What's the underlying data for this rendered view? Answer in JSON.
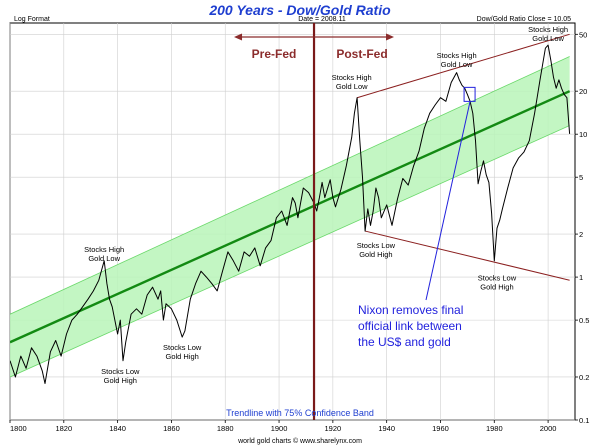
{
  "chart_data": {
    "type": "line",
    "title": "200 Years - Dow/Gold Ratio",
    "header_left": "Log Format",
    "header_center": "Date = 2008.11",
    "header_right": "Dow/Gold Ratio Close = 10.05",
    "footer": "world gold charts © www.sharelynx.com",
    "band_label": "Trendline with 75% Confidence Band",
    "xlim": [
      1800,
      2010
    ],
    "ylim": [
      0.1,
      60
    ],
    "yscale": "log",
    "x_ticks": [
      1800,
      1820,
      1840,
      1860,
      1880,
      1900,
      1920,
      1940,
      1960,
      1980,
      2000
    ],
    "y_ticks": [
      0.1,
      0.2,
      0.5,
      1,
      2,
      5,
      10,
      20,
      50
    ],
    "grid": true,
    "fed_year": 1913,
    "fed_labels": {
      "pre": "Pre-Fed",
      "post": "Post-Fed"
    },
    "trendline": {
      "start": [
        1800,
        0.35
      ],
      "end": [
        2008,
        20
      ]
    },
    "band": {
      "upper": [
        [
          1800,
          0.55
        ],
        [
          2008,
          35
        ]
      ],
      "lower": [
        [
          1800,
          0.2
        ],
        [
          2008,
          11.5
        ]
      ]
    },
    "channel_upper": [
      [
        1929,
        18
      ],
      [
        2008,
        50
      ]
    ],
    "channel_lower": [
      [
        1932,
        2.1
      ],
      [
        2008,
        0.95
      ]
    ],
    "nixon_box": {
      "year": 1971,
      "value": 19
    },
    "nixon_note": [
      "Nixon removes final",
      "official link between",
      "the US$ and gold"
    ],
    "annotations": [
      {
        "lines": [
          "Stocks High",
          "Gold Low"
        ],
        "x": 1835,
        "y": 1.5
      },
      {
        "lines": [
          "Stocks Low",
          "Gold High"
        ],
        "x": 1841,
        "y": 0.21
      },
      {
        "lines": [
          "Stocks Low",
          "Gold High"
        ],
        "x": 1864,
        "y": 0.31
      },
      {
        "lines": [
          "Stocks High",
          "Gold Low"
        ],
        "x": 1927,
        "y": 24
      },
      {
        "lines": [
          "Stocks Low",
          "Gold High"
        ],
        "x": 1936,
        "y": 1.6
      },
      {
        "lines": [
          "Stocks High",
          "Gold Low"
        ],
        "x": 1966,
        "y": 34
      },
      {
        "lines": [
          "Stocks Low",
          "Gold High"
        ],
        "x": 1981,
        "y": 0.95
      },
      {
        "lines": [
          "Stocks High",
          "Gold Low"
        ],
        "x": 2000,
        "y": 52
      }
    ],
    "series": [
      {
        "points": [
          [
            1800,
            0.26
          ],
          [
            1802,
            0.2
          ],
          [
            1804,
            0.28
          ],
          [
            1806,
            0.23
          ],
          [
            1808,
            0.32
          ],
          [
            1810,
            0.28
          ],
          [
            1812,
            0.22
          ],
          [
            1813,
            0.18
          ],
          [
            1815,
            0.3
          ],
          [
            1817,
            0.36
          ],
          [
            1819,
            0.28
          ],
          [
            1821,
            0.4
          ],
          [
            1823,
            0.5
          ],
          [
            1825,
            0.55
          ],
          [
            1827,
            0.62
          ],
          [
            1829,
            0.7
          ],
          [
            1831,
            0.8
          ],
          [
            1833,
            0.95
          ],
          [
            1835,
            1.3
          ],
          [
            1836,
            0.9
          ],
          [
            1837,
            0.7
          ],
          [
            1838,
            0.62
          ],
          [
            1840,
            0.4
          ],
          [
            1841,
            0.5
          ],
          [
            1842,
            0.26
          ],
          [
            1843,
            0.35
          ],
          [
            1845,
            0.55
          ],
          [
            1847,
            0.6
          ],
          [
            1849,
            0.55
          ],
          [
            1851,
            0.75
          ],
          [
            1853,
            0.85
          ],
          [
            1855,
            0.7
          ],
          [
            1856,
            0.8
          ],
          [
            1857,
            0.5
          ],
          [
            1858,
            0.65
          ],
          [
            1860,
            0.6
          ],
          [
            1862,
            0.5
          ],
          [
            1864,
            0.38
          ],
          [
            1865,
            0.42
          ],
          [
            1867,
            0.7
          ],
          [
            1869,
            0.9
          ],
          [
            1871,
            1.1
          ],
          [
            1873,
            1.0
          ],
          [
            1875,
            0.9
          ],
          [
            1877,
            0.8
          ],
          [
            1879,
            1.1
          ],
          [
            1881,
            1.5
          ],
          [
            1883,
            1.3
          ],
          [
            1885,
            1.1
          ],
          [
            1887,
            1.5
          ],
          [
            1889,
            1.4
          ],
          [
            1891,
            1.6
          ],
          [
            1893,
            1.2
          ],
          [
            1895,
            1.6
          ],
          [
            1897,
            1.8
          ],
          [
            1899,
            2.6
          ],
          [
            1901,
            2.9
          ],
          [
            1903,
            2.3
          ],
          [
            1905,
            3.6
          ],
          [
            1906,
            3.3
          ],
          [
            1907,
            2.6
          ],
          [
            1909,
            4.2
          ],
          [
            1911,
            3.9
          ],
          [
            1913,
            3.3
          ],
          [
            1914,
            2.9
          ],
          [
            1915,
            3.6
          ],
          [
            1916,
            4.6
          ],
          [
            1917,
            3.6
          ],
          [
            1919,
            4.8
          ],
          [
            1920,
            3.6
          ],
          [
            1921,
            3.1
          ],
          [
            1923,
            4.1
          ],
          [
            1925,
            6.0
          ],
          [
            1927,
            9.5
          ],
          [
            1928,
            14.0
          ],
          [
            1929,
            18.0
          ],
          [
            1930,
            9.0
          ],
          [
            1931,
            5.0
          ],
          [
            1932,
            2.1
          ],
          [
            1933,
            3.0
          ],
          [
            1934,
            2.3
          ],
          [
            1935,
            2.9
          ],
          [
            1936,
            4.2
          ],
          [
            1937,
            3.6
          ],
          [
            1938,
            2.6
          ],
          [
            1940,
            3.2
          ],
          [
            1942,
            2.3
          ],
          [
            1944,
            3.5
          ],
          [
            1946,
            4.9
          ],
          [
            1948,
            4.4
          ],
          [
            1950,
            6.0
          ],
          [
            1952,
            7.6
          ],
          [
            1954,
            11.0
          ],
          [
            1956,
            14.0
          ],
          [
            1958,
            16.0
          ],
          [
            1960,
            18.0
          ],
          [
            1962,
            17.0
          ],
          [
            1964,
            23.0
          ],
          [
            1966,
            27.0
          ],
          [
            1967,
            24.0
          ],
          [
            1968,
            22.0
          ],
          [
            1969,
            21.0
          ],
          [
            1970,
            19.0
          ],
          [
            1971,
            17.0
          ],
          [
            1972,
            14.0
          ],
          [
            1973,
            9.0
          ],
          [
            1974,
            4.5
          ],
          [
            1975,
            5.5
          ],
          [
            1976,
            6.5
          ],
          [
            1977,
            5.2
          ],
          [
            1978,
            4.6
          ],
          [
            1979,
            2.8
          ],
          [
            1980,
            1.3
          ],
          [
            1981,
            2.2
          ],
          [
            1982,
            2.5
          ],
          [
            1983,
            3.0
          ],
          [
            1985,
            4.2
          ],
          [
            1987,
            5.8
          ],
          [
            1989,
            6.8
          ],
          [
            1991,
            7.5
          ],
          [
            1993,
            9.0
          ],
          [
            1995,
            14.0
          ],
          [
            1997,
            24.0
          ],
          [
            1999,
            40.0
          ],
          [
            2000,
            42.0
          ],
          [
            2001,
            33.0
          ],
          [
            2002,
            25.0
          ],
          [
            2003,
            21.0
          ],
          [
            2004,
            24.0
          ],
          [
            2005,
            21.0
          ],
          [
            2006,
            19.0
          ],
          [
            2007,
            18.0
          ],
          [
            2008,
            10.05
          ]
        ]
      }
    ]
  }
}
